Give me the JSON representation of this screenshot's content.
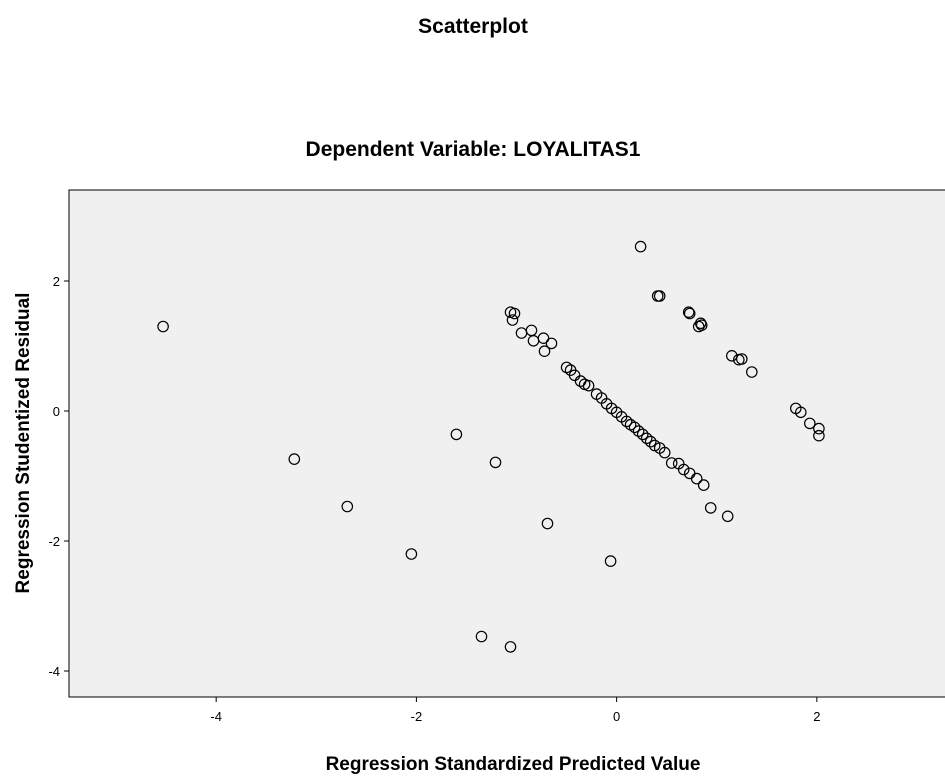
{
  "title": "Scatterplot",
  "subtitle": "Dependent Variable: LOYALITAS1",
  "chart_data": {
    "type": "scatter",
    "title": "Scatterplot",
    "subtitle": "Dependent Variable: LOYALITAS1",
    "xlabel": "Regression Standardized Predicted Value",
    "ylabel": "Regression Studentized Residual",
    "xlim": [
      -5.47,
      3.32
    ],
    "ylim": [
      -4.4,
      3.4
    ],
    "xticks": [
      -4,
      -2,
      0,
      2
    ],
    "yticks": [
      -4,
      -2,
      0,
      2
    ],
    "xtick_labels": [
      "-4",
      "-2",
      "0",
      "2"
    ],
    "ytick_labels": [
      "-4",
      "-2",
      "0",
      "2"
    ],
    "grid": false,
    "colors": {
      "plot_background": "#f0f0f0",
      "marker": "#000000"
    },
    "series": [
      {
        "marker": "open-circle",
        "points": [
          [
            -4.53,
            1.3
          ],
          [
            -3.22,
            -0.74
          ],
          [
            -2.69,
            -1.47
          ],
          [
            -2.05,
            -2.2
          ],
          [
            -1.6,
            -0.36
          ],
          [
            -1.21,
            -0.79
          ],
          [
            -1.35,
            -3.47
          ],
          [
            -1.06,
            -3.63
          ],
          [
            -0.69,
            -1.73
          ],
          [
            -0.06,
            -2.31
          ],
          [
            0.94,
            -1.49
          ],
          [
            1.11,
            -1.62
          ],
          [
            0.24,
            2.53
          ],
          [
            0.41,
            1.77
          ],
          [
            0.43,
            1.77
          ],
          [
            0.72,
            1.52
          ],
          [
            0.73,
            1.5
          ],
          [
            0.82,
            1.3
          ],
          [
            0.84,
            1.35
          ],
          [
            0.85,
            1.32
          ],
          [
            1.15,
            0.85
          ],
          [
            1.22,
            0.79
          ],
          [
            1.25,
            0.8
          ],
          [
            1.35,
            0.6
          ],
          [
            1.79,
            0.04
          ],
          [
            1.84,
            -0.02
          ],
          [
            1.93,
            -0.19
          ],
          [
            2.02,
            -0.27
          ],
          [
            2.02,
            -0.38
          ],
          [
            -1.06,
            1.52
          ],
          [
            -1.02,
            1.5
          ],
          [
            -1.04,
            1.4
          ],
          [
            -0.95,
            1.2
          ],
          [
            -0.85,
            1.24
          ],
          [
            -0.83,
            1.08
          ],
          [
            -0.73,
            1.12
          ],
          [
            -0.72,
            0.92
          ],
          [
            -0.65,
            1.04
          ],
          [
            -0.5,
            0.67
          ],
          [
            -0.46,
            0.63
          ],
          [
            -0.42,
            0.55
          ],
          [
            -0.36,
            0.46
          ],
          [
            -0.32,
            0.41
          ],
          [
            -0.28,
            0.39
          ],
          [
            -0.2,
            0.26
          ],
          [
            -0.15,
            0.2
          ],
          [
            -0.1,
            0.11
          ],
          [
            -0.05,
            0.04
          ],
          [
            0.0,
            -0.02
          ],
          [
            0.05,
            -0.09
          ],
          [
            0.1,
            -0.16
          ],
          [
            0.14,
            -0.21
          ],
          [
            0.18,
            -0.25
          ],
          [
            0.22,
            -0.31
          ],
          [
            0.26,
            -0.36
          ],
          [
            0.3,
            -0.42
          ],
          [
            0.34,
            -0.47
          ],
          [
            0.38,
            -0.53
          ],
          [
            0.43,
            -0.57
          ],
          [
            0.48,
            -0.64
          ],
          [
            0.55,
            -0.8
          ],
          [
            0.62,
            -0.81
          ],
          [
            0.67,
            -0.9
          ],
          [
            0.73,
            -0.96
          ],
          [
            0.8,
            -1.04
          ],
          [
            0.87,
            -1.14
          ]
        ]
      }
    ]
  }
}
